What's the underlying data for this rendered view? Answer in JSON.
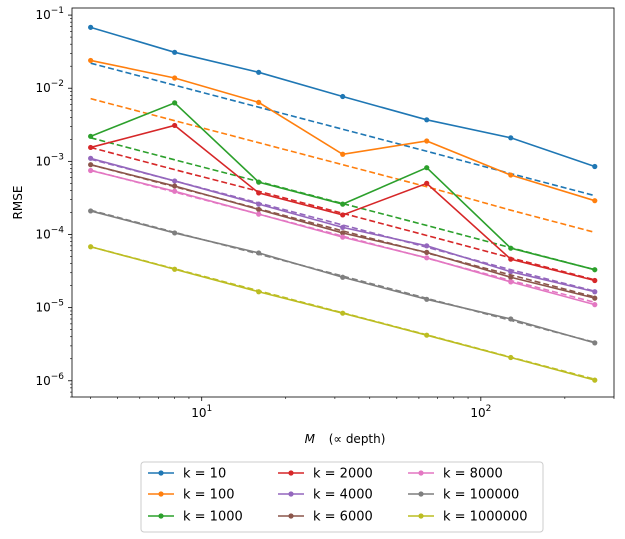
{
  "chart_data": {
    "type": "line",
    "scale": {
      "x": "log",
      "y": "log"
    },
    "xlabel": "M   (∝ depth)",
    "xlabel_math": "M",
    "xlabel_rest": "(∝ depth)",
    "ylabel": "RMSE",
    "xlim": [
      3.43,
      300
    ],
    "ylim": [
      6e-07,
      0.125
    ],
    "x_ticks": [
      {
        "value": 10,
        "base": "10",
        "exp": "1"
      },
      {
        "value": 100,
        "base": "10",
        "exp": "2"
      }
    ],
    "y_ticks": [
      {
        "value": 1e-06,
        "base": "10",
        "exp": "−6"
      },
      {
        "value": 1e-05,
        "base": "10",
        "exp": "−5"
      },
      {
        "value": 0.0001,
        "base": "10",
        "exp": "−4"
      },
      {
        "value": 0.001,
        "base": "10",
        "exp": "−3"
      },
      {
        "value": 0.01,
        "base": "10",
        "exp": "−2"
      },
      {
        "value": 0.1,
        "base": "10",
        "exp": "−1"
      }
    ],
    "x": [
      4,
      8,
      16,
      32,
      64,
      128,
      256
    ],
    "legend_position": "below plot, 3 columns",
    "series": [
      {
        "name": "k = 10",
        "color": "#1f77b4",
        "values": [
          0.068,
          0.031,
          0.0165,
          0.0077,
          0.0037,
          0.0021,
          0.00085
        ],
        "fit": [
          0.022,
          0.011,
          0.0055,
          0.00275,
          0.001375,
          0.00068,
          0.00034
        ]
      },
      {
        "name": "k = 100",
        "color": "#ff7f0e",
        "values": [
          0.024,
          0.0138,
          0.0064,
          0.00125,
          0.0019,
          0.00065,
          0.00029
        ],
        "fit": [
          0.0072,
          0.0036,
          0.0018,
          0.0009,
          0.00045,
          0.000215,
          0.000107
        ]
      },
      {
        "name": "k = 1000",
        "color": "#2ca02c",
        "values": [
          0.0022,
          0.0063,
          0.00052,
          0.00026,
          0.00082,
          6.5e-05,
          3.3e-05
        ],
        "fit": [
          0.0021,
          0.00105,
          0.00053,
          0.000265,
          0.000133,
          6.6e-05,
          3.3e-05
        ]
      },
      {
        "name": "k = 2000",
        "color": "#d62728",
        "values": [
          0.00155,
          0.0031,
          0.00037,
          0.000185,
          0.0005,
          4.6e-05,
          2.35e-05
        ],
        "fit": [
          0.00155,
          0.00077,
          0.00039,
          0.000195,
          9.7e-05,
          4.8e-05,
          2.4e-05
        ]
      },
      {
        "name": "k = 4000",
        "color": "#9467bd",
        "values": [
          0.0011,
          0.00054,
          0.00026,
          0.000125,
          7e-05,
          3.1e-05,
          1.65e-05
        ],
        "fit": [
          0.00107,
          0.00054,
          0.00027,
          0.000135,
          6.7e-05,
          3.3e-05,
          1.68e-05
        ]
      },
      {
        "name": "k = 6000",
        "color": "#8c564b",
        "values": [
          0.0009,
          0.00046,
          0.00022,
          0.000105,
          5.7e-05,
          2.6e-05,
          1.35e-05
        ],
        "fit": [
          0.0009,
          0.00045,
          0.000225,
          0.000112,
          5.6e-05,
          2.8e-05,
          1.4e-05
        ]
      },
      {
        "name": "k = 8000",
        "color": "#e377c2",
        "values": [
          0.00075,
          0.00039,
          0.00019,
          9.2e-05,
          4.8e-05,
          2.25e-05,
          1.1e-05
        ],
        "fit": [
          0.00076,
          0.00038,
          0.00019,
          9.5e-05,
          4.75e-05,
          2.35e-05,
          1.18e-05
        ]
      },
      {
        "name": "k = 100000",
        "color": "#7f7f7f",
        "values": [
          0.00021,
          0.000105,
          5.6e-05,
          2.6e-05,
          1.3e-05,
          7e-06,
          3.3e-06
        ],
        "fit": [
          0.000215,
          0.000107,
          5.4e-05,
          2.7e-05,
          1.34e-05,
          6.7e-06,
          3.35e-06
        ]
      },
      {
        "name": "k = 1000000",
        "color": "#bcbd22",
        "values": [
          6.8e-05,
          3.35e-05,
          1.65e-05,
          8.4e-06,
          4.2e-06,
          2.08e-06,
          1.02e-06
        ],
        "fit": [
          6.8e-05,
          3.4e-05,
          1.7e-05,
          8.5e-06,
          4.25e-06,
          2.1e-06,
          1.05e-06
        ]
      }
    ]
  }
}
